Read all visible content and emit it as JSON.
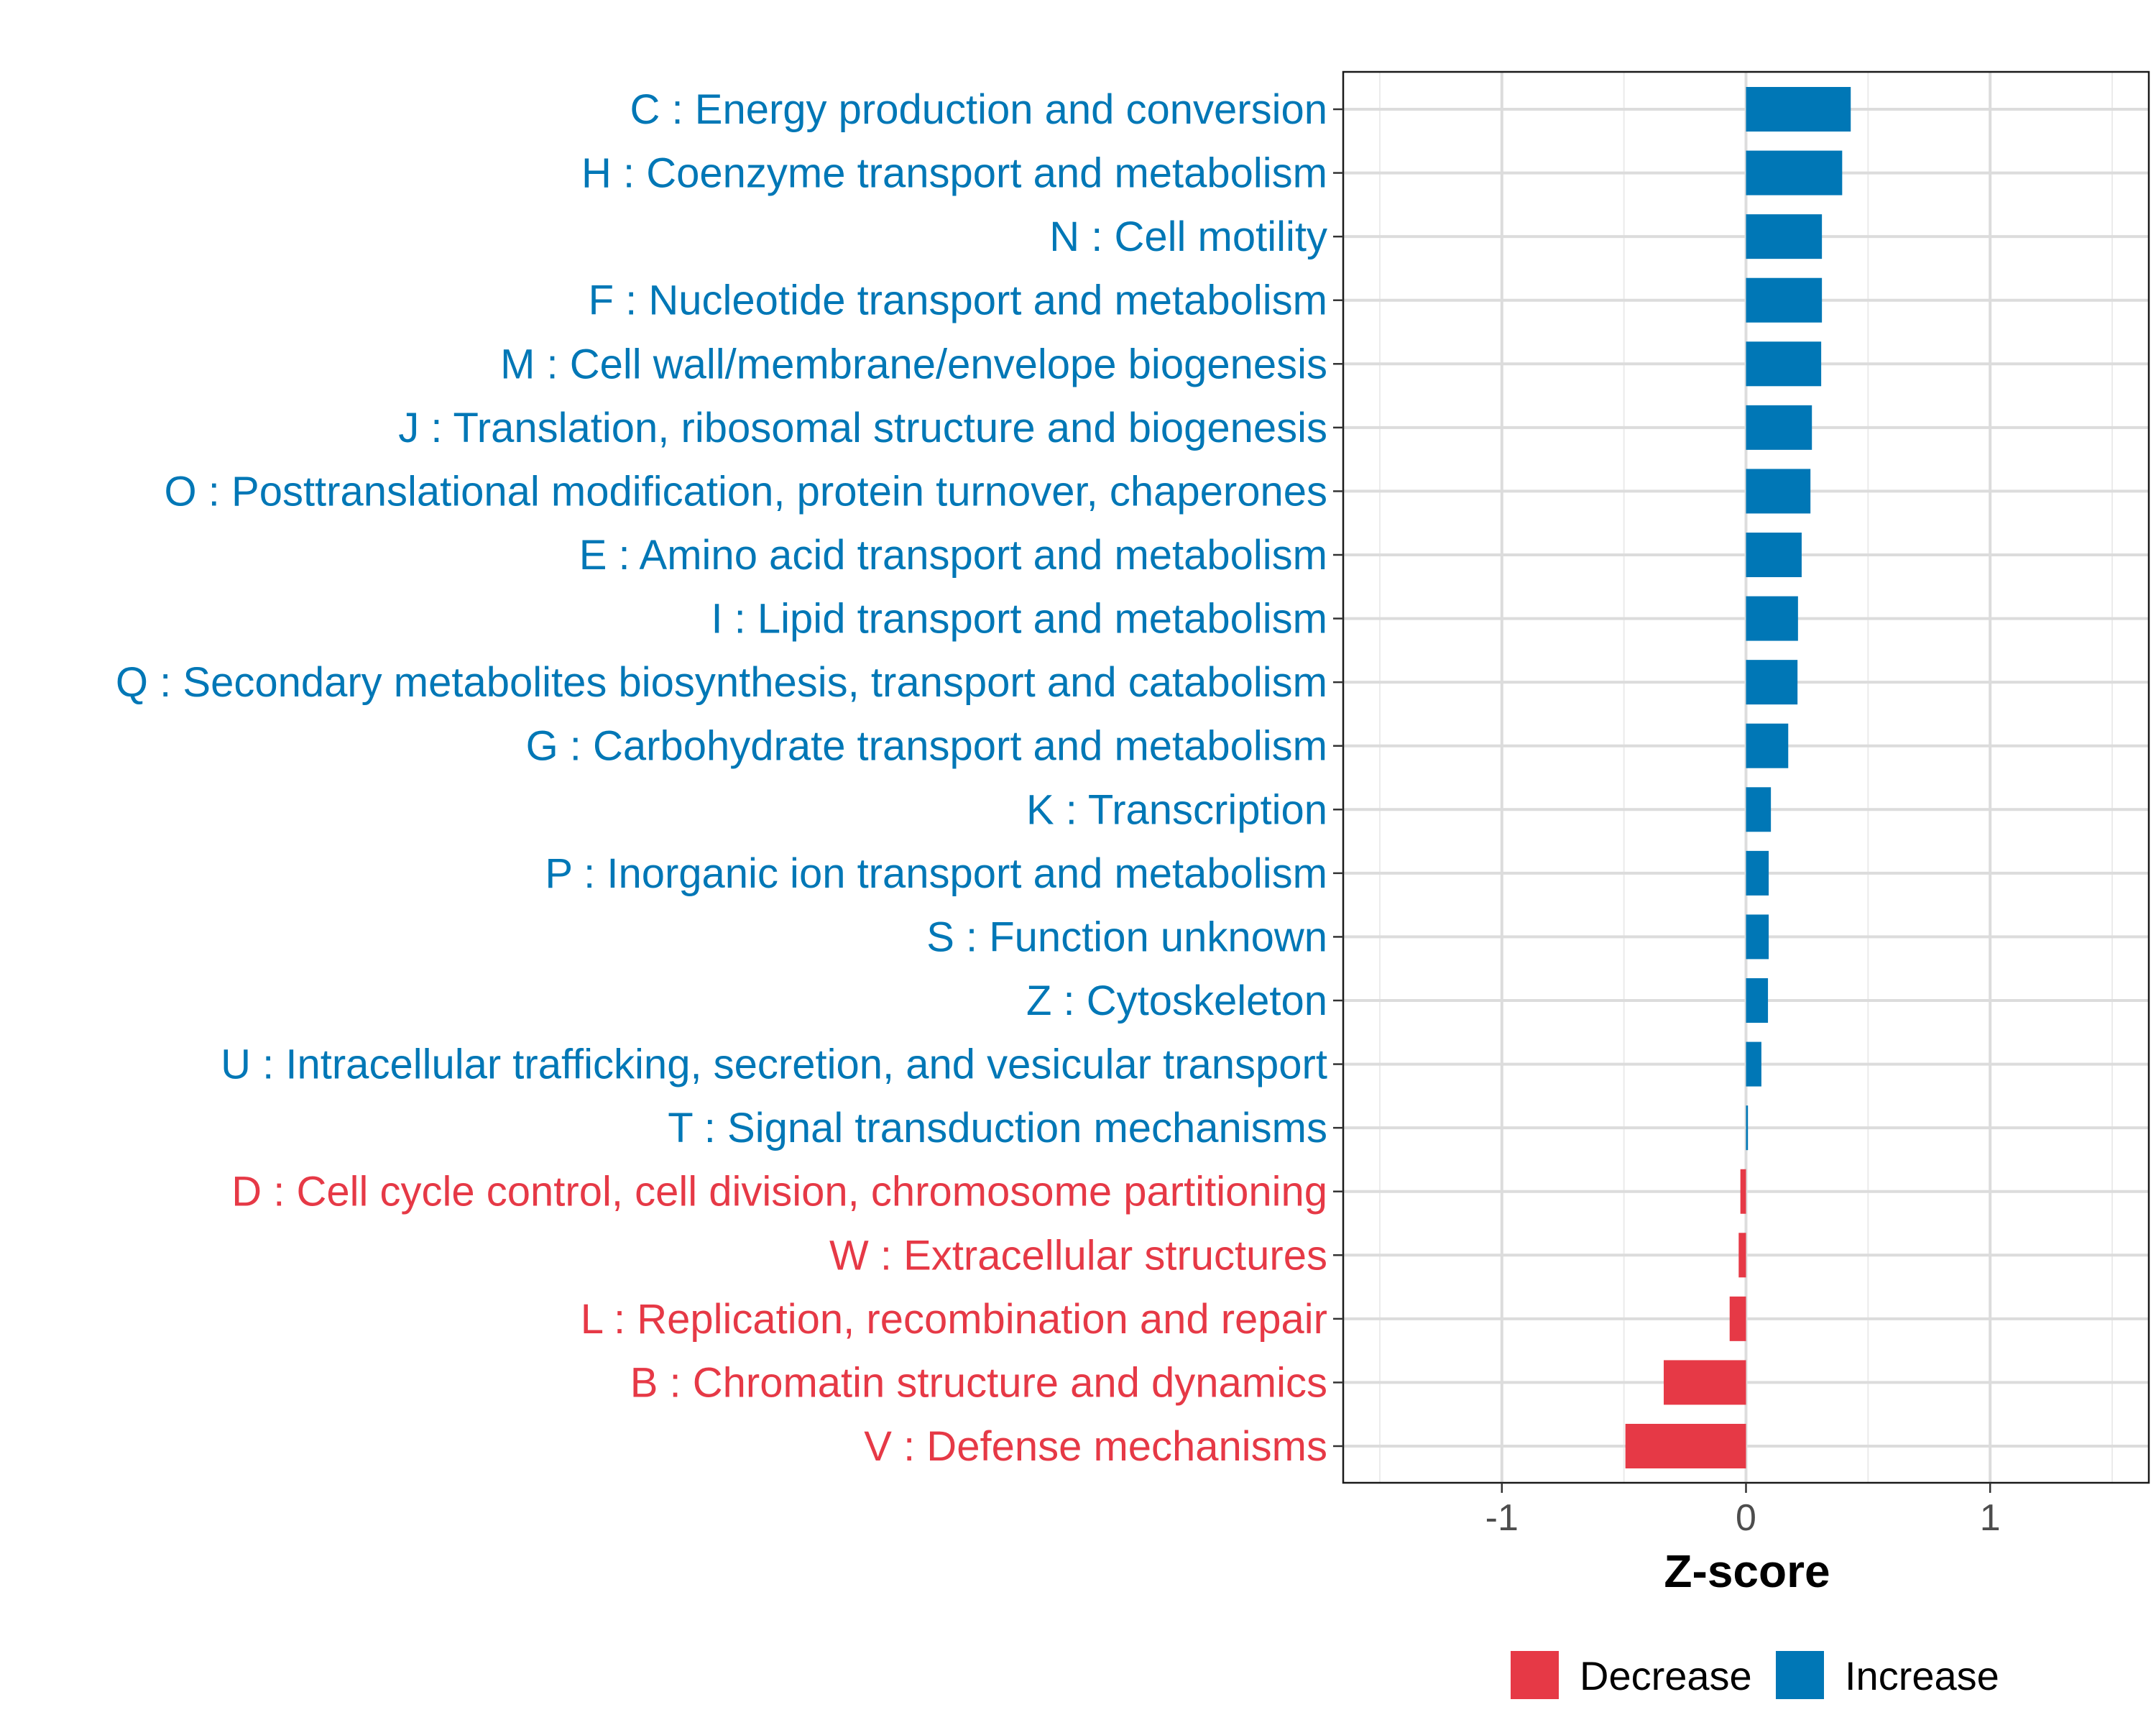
{
  "chart_data": {
    "type": "bar",
    "orientation": "horizontal",
    "title": "",
    "xlabel": "Z-score",
    "ylabel": "",
    "xlim": [
      -1.65,
      1.65
    ],
    "xticks": [
      -1,
      0,
      1
    ],
    "xtick_labels": [
      "-1",
      "0",
      "1"
    ],
    "grid": true,
    "legend_position": "bottom",
    "legend": [
      {
        "label": "Decrease",
        "color": "#E63946"
      },
      {
        "label": "Increase",
        "color": "#0077B6"
      }
    ],
    "categories": [
      "C : Energy production and conversion",
      "H : Coenzyme transport and metabolism",
      "N : Cell motility",
      "F : Nucleotide transport and metabolism",
      "M : Cell wall/membrane/envelope biogenesis",
      "J : Translation, ribosomal structure and biogenesis",
      "O : Posttranslational modification, protein turnover, chaperones",
      "E : Amino acid transport and metabolism",
      "I : Lipid transport and metabolism",
      "Q : Secondary metabolites biosynthesis, transport and catabolism",
      "G : Carbohydrate transport and metabolism",
      "K : Transcription",
      "P : Inorganic ion transport and metabolism",
      "S : Function unknown",
      "Z : Cytoskeleton",
      "U : Intracellular trafficking, secretion, and vesicular transport",
      "T : Signal transduction mechanisms",
      "D : Cell cycle control, cell division, chromosome partitioning",
      "W : Extracellular structures",
      "L : Replication, recombination and repair",
      "B : Chromatin structure and dynamics",
      "V : Defense mechanisms"
    ],
    "values": [
      0.429,
      0.394,
      0.311,
      0.311,
      0.308,
      0.27,
      0.264,
      0.228,
      0.213,
      0.211,
      0.173,
      0.102,
      0.093,
      0.093,
      0.09,
      0.063,
      0.008,
      -0.023,
      -0.03,
      -0.067,
      -0.337,
      -0.494
    ],
    "groups": [
      "Increase",
      "Increase",
      "Increase",
      "Increase",
      "Increase",
      "Increase",
      "Increase",
      "Increase",
      "Increase",
      "Increase",
      "Increase",
      "Increase",
      "Increase",
      "Increase",
      "Increase",
      "Increase",
      "Increase",
      "Decrease",
      "Decrease",
      "Decrease",
      "Decrease",
      "Decrease"
    ]
  }
}
